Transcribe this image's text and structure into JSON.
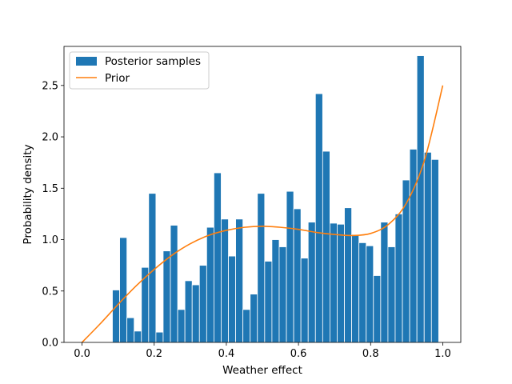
{
  "chart_data": {
    "type": "bar",
    "title": "",
    "xlabel": "Weather effect",
    "ylabel": "Probability density",
    "xlim": [
      -0.05,
      1.05
    ],
    "ylim": [
      0,
      2.88
    ],
    "xticks": [
      "0.0",
      "0.2",
      "0.4",
      "0.6",
      "0.8",
      "1.0"
    ],
    "yticks": [
      "0.0",
      "0.5",
      "1.0",
      "1.5",
      "2.0",
      "2.5"
    ],
    "grid": false,
    "legend_position": "top-left",
    "colors": {
      "bars": "#1f77b4",
      "prior": "#ff7f0e"
    },
    "histogram": {
      "name": "Posterior samples",
      "bin_edges": [
        0.0842,
        0.1043,
        0.1244,
        0.1445,
        0.1646,
        0.1847,
        0.2048,
        0.2249,
        0.245,
        0.2651,
        0.2852,
        0.3053,
        0.3254,
        0.3455,
        0.3656,
        0.3857,
        0.4058,
        0.4259,
        0.446,
        0.4661,
        0.4862,
        0.5063,
        0.5264,
        0.5465,
        0.5666,
        0.5867,
        0.6068,
        0.6269,
        0.647,
        0.6671,
        0.6872,
        0.7073,
        0.7274,
        0.7475,
        0.7676,
        0.7877,
        0.8078,
        0.8279,
        0.848,
        0.8681,
        0.8882,
        0.9083,
        0.9284,
        0.9485,
        0.9686,
        0.9887
      ],
      "values": [
        0.51,
        1.02,
        0.24,
        0.11,
        0.73,
        1.45,
        0.1,
        0.89,
        1.14,
        0.32,
        0.6,
        0.56,
        0.75,
        1.12,
        1.65,
        1.2,
        0.84,
        1.2,
        0.32,
        0.47,
        1.45,
        0.79,
        1.0,
        0.93,
        1.47,
        1.3,
        0.82,
        1.17,
        2.42,
        1.86,
        1.16,
        1.15,
        1.31,
        1.05,
        0.97,
        0.94,
        0.65,
        1.17,
        0.93,
        1.25,
        1.58,
        1.88,
        2.79,
        1.85,
        1.78
      ]
    },
    "prior": {
      "name": "Prior",
      "x": [
        0.0,
        0.05,
        0.1,
        0.15,
        0.2,
        0.25,
        0.3,
        0.35,
        0.4,
        0.45,
        0.5,
        0.55,
        0.6,
        0.65,
        0.7,
        0.75,
        0.8,
        0.85,
        0.9,
        0.95,
        1.0
      ],
      "y": [
        0.0,
        0.18,
        0.37,
        0.55,
        0.71,
        0.85,
        0.96,
        1.04,
        1.09,
        1.12,
        1.13,
        1.12,
        1.1,
        1.07,
        1.05,
        1.04,
        1.06,
        1.15,
        1.36,
        1.78,
        2.5
      ]
    }
  }
}
